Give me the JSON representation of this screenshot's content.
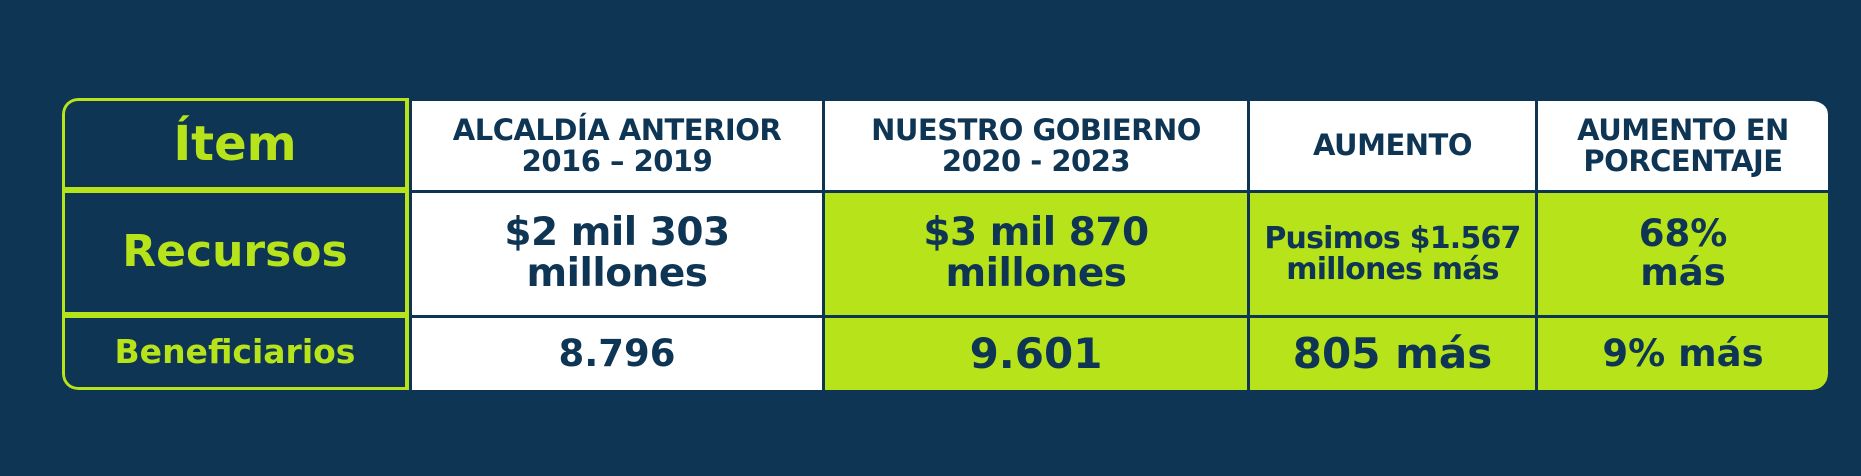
{
  "table": {
    "header": {
      "item": "Ítem",
      "previous": [
        "ALCALDÍA ANTERIOR",
        "2016 – 2019"
      ],
      "current": [
        "NUESTRO GOBIERNO",
        "2020 - 2023"
      ],
      "increase": "AUMENTO",
      "percent": [
        "AUMENTO EN",
        "PORCENTAJE"
      ]
    },
    "rows": [
      {
        "label": "Recursos",
        "previous": [
          "$2 mil 303",
          "millones"
        ],
        "current": [
          "$3 mil 870",
          "millones"
        ],
        "increase": [
          "Pusimos $1.567",
          "millones más"
        ],
        "percent": [
          "68%",
          "más"
        ]
      },
      {
        "label": "Beneficiarios",
        "previous": "8.796",
        "current": "9.601",
        "increase": "805 más",
        "percent": "9% más"
      }
    ]
  },
  "colors": {
    "background": "#0f3555",
    "accent": "#b6e31a",
    "white": "#ffffff"
  }
}
